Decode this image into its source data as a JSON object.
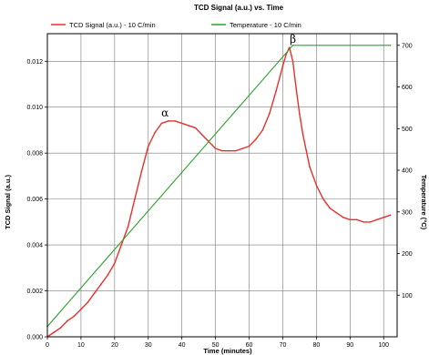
{
  "chart_data": {
    "type": "line",
    "title": "TCD Signal (a.u.) vs. Time",
    "xlabel": "Time (minutes)",
    "ylabel": "TCD Signal (a.u.)",
    "y2label": "Temperature (°C)",
    "xlim": [
      0,
      104
    ],
    "ylim": [
      0,
      0.0132
    ],
    "y2lim": [
      0,
      728
    ],
    "x_ticks": [
      0,
      10,
      20,
      30,
      40,
      50,
      60,
      70,
      80,
      90,
      100
    ],
    "y_ticks": [
      0.0,
      0.002,
      0.004,
      0.006,
      0.008,
      0.01,
      0.012
    ],
    "y_tick_labels": [
      "0.000",
      "0.002",
      "0.004",
      "0.006",
      "0.008",
      "0.010",
      "0.012"
    ],
    "y2_ticks": [
      100,
      200,
      300,
      400,
      500,
      600,
      700
    ],
    "grid": true,
    "legend_position": "top",
    "series": [
      {
        "name": "TCD Signal (a.u.) - 10 C/min",
        "color": "#e8302a",
        "axis": "left",
        "x": [
          0,
          2,
          4,
          6,
          8,
          10,
          12,
          14,
          16,
          18,
          20,
          22,
          24,
          26,
          28,
          30,
          32,
          34,
          36,
          38,
          40,
          42,
          44,
          46,
          48,
          50,
          52,
          54,
          56,
          58,
          60,
          62,
          64,
          66,
          68,
          70,
          71,
          72,
          73,
          74,
          75,
          76,
          77,
          78,
          80,
          82,
          84,
          86,
          88,
          90,
          92,
          94,
          96,
          98,
          100,
          102
        ],
        "y": [
          0.0,
          0.0002,
          0.0004,
          0.0007,
          0.0009,
          0.0012,
          0.0015,
          0.0019,
          0.0023,
          0.0027,
          0.0032,
          0.004,
          0.0048,
          0.006,
          0.0072,
          0.0083,
          0.0089,
          0.0093,
          0.0094,
          0.0094,
          0.0093,
          0.0092,
          0.0091,
          0.0088,
          0.0085,
          0.0082,
          0.0081,
          0.0081,
          0.0081,
          0.0082,
          0.0083,
          0.0086,
          0.009,
          0.0097,
          0.0107,
          0.0118,
          0.0123,
          0.0126,
          0.012,
          0.0108,
          0.0097,
          0.0088,
          0.0081,
          0.0074,
          0.0066,
          0.006,
          0.0056,
          0.0054,
          0.0052,
          0.0051,
          0.0051,
          0.005,
          0.005,
          0.0051,
          0.0052,
          0.0053
        ]
      },
      {
        "name": "Temperature - 10 C/min",
        "color": "#2ca02c",
        "axis": "right",
        "x": [
          0,
          73,
          102
        ],
        "y": [
          25,
          700,
          700
        ]
      }
    ],
    "annotations": [
      {
        "text": "α",
        "x": 35,
        "y": 0.0096
      },
      {
        "text": "β",
        "x": 73,
        "y": 0.0128
      }
    ]
  }
}
